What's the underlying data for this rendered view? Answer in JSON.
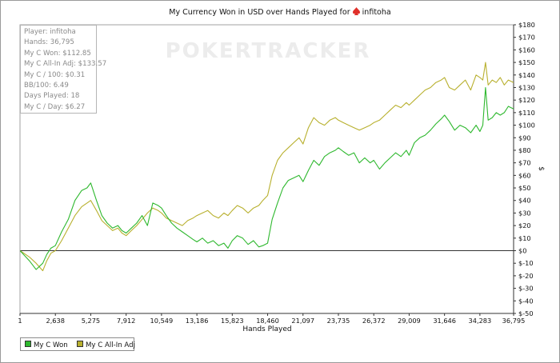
{
  "chart_data": {
    "type": "line",
    "title": "My Currency Won in USD over Hands Played for",
    "player_icon": "red-spade-icon",
    "player_name": "infitoha",
    "xlabel": "Hands Played",
    "ylabel": "$",
    "x_ticks": [
      "1",
      "2,638",
      "5,275",
      "7,912",
      "10,549",
      "13,186",
      "15,823",
      "18,460",
      "21,097",
      "23,735",
      "26,372",
      "29,009",
      "31,646",
      "34,283",
      "36,795"
    ],
    "y_ticks": [
      "$180",
      "$170",
      "$160",
      "$150",
      "$140",
      "$130",
      "$120",
      "$110",
      "$100",
      "$90",
      "$80",
      "$70",
      "$60",
      "$50",
      "$40",
      "$30",
      "$20",
      "$10",
      "$0",
      "$-10",
      "$-20",
      "$-30",
      "$-40",
      "$-50"
    ],
    "xlim": [
      1,
      36795
    ],
    "ylim": [
      -50,
      180
    ],
    "watermark": "POKERTRACKER",
    "stats": [
      "Player: infitoha",
      "Hands: 36,795",
      "My C Won: $112.85",
      "My C All-In Adj: $133.57",
      "My C / 100: $0.31",
      "BB/100: 6.49",
      "Days Played: 18",
      "My C / Day: $6.27"
    ],
    "series": [
      {
        "name": "My C Won",
        "color": "#2eb82e",
        "x": [
          1,
          700,
          1200,
          1700,
          2000,
          2300,
          2638,
          3100,
          3600,
          4100,
          4600,
          5000,
          5275,
          5700,
          6100,
          6500,
          6900,
          7300,
          7600,
          7912,
          8300,
          8700,
          9100,
          9500,
          9900,
          10300,
          10549,
          10900,
          11300,
          11700,
          12100,
          12500,
          12900,
          13186,
          13600,
          14000,
          14400,
          14800,
          15200,
          15500,
          15823,
          16200,
          16600,
          17000,
          17400,
          17800,
          18100,
          18460,
          18800,
          19200,
          19600,
          20000,
          20400,
          20800,
          21097,
          21500,
          21900,
          22300,
          22700,
          23100,
          23500,
          23735,
          24100,
          24500,
          24900,
          25300,
          25700,
          26100,
          26372,
          26800,
          27200,
          27600,
          28000,
          28400,
          28800,
          29009,
          29400,
          29800,
          30200,
          30600,
          31000,
          31400,
          31646,
          32000,
          32400,
          32800,
          33200,
          33600,
          34000,
          34283,
          34500,
          34700,
          34900,
          35200,
          35500,
          35800,
          36100,
          36400,
          36795
        ],
        "values": [
          0,
          -8,
          -15,
          -10,
          -3,
          2,
          4,
          15,
          25,
          40,
          48,
          50,
          54,
          40,
          28,
          22,
          18,
          20,
          16,
          14,
          18,
          22,
          28,
          20,
          38,
          36,
          34,
          28,
          22,
          18,
          15,
          12,
          9,
          7,
          10,
          6,
          8,
          4,
          6,
          2,
          8,
          12,
          10,
          5,
          8,
          3,
          4,
          6,
          25,
          38,
          50,
          56,
          58,
          60,
          55,
          64,
          72,
          68,
          75,
          78,
          80,
          82,
          79,
          76,
          78,
          70,
          74,
          70,
          72,
          65,
          70,
          74,
          78,
          75,
          80,
          76,
          86,
          90,
          92,
          96,
          101,
          105,
          108,
          103,
          96,
          100,
          98,
          94,
          100,
          95,
          100,
          130,
          104,
          106,
          110,
          108,
          110,
          115,
          113
        ]
      },
      {
        "name": "My C All-In Adj",
        "color": "#b8b02e",
        "x": [
          1,
          700,
          1200,
          1700,
          2000,
          2300,
          2638,
          3100,
          3600,
          4100,
          4600,
          5000,
          5275,
          5700,
          6100,
          6500,
          6900,
          7300,
          7600,
          7912,
          8300,
          8700,
          9100,
          9500,
          9900,
          10300,
          10549,
          10900,
          11300,
          11700,
          12100,
          12500,
          12900,
          13186,
          13600,
          14000,
          14400,
          14800,
          15200,
          15500,
          15823,
          16200,
          16600,
          17000,
          17400,
          17800,
          18100,
          18460,
          18800,
          19200,
          19600,
          20000,
          20400,
          20800,
          21097,
          21500,
          21900,
          22300,
          22700,
          23100,
          23500,
          23735,
          24100,
          24500,
          24900,
          25300,
          25700,
          26100,
          26372,
          26800,
          27200,
          27600,
          28000,
          28400,
          28800,
          29009,
          29400,
          29800,
          30200,
          30600,
          31000,
          31400,
          31646,
          32000,
          32400,
          32800,
          33200,
          33600,
          34000,
          34283,
          34500,
          34700,
          34900,
          35200,
          35500,
          35800,
          36100,
          36400,
          36795
        ],
        "values": [
          0,
          -5,
          -10,
          -16,
          -8,
          -2,
          0,
          8,
          18,
          28,
          35,
          38,
          40,
          32,
          24,
          20,
          16,
          18,
          14,
          12,
          16,
          20,
          25,
          30,
          34,
          32,
          30,
          26,
          24,
          22,
          20,
          24,
          26,
          28,
          30,
          32,
          28,
          26,
          30,
          28,
          32,
          36,
          34,
          30,
          34,
          36,
          40,
          44,
          60,
          72,
          78,
          82,
          86,
          90,
          85,
          98,
          106,
          102,
          100,
          104,
          106,
          104,
          102,
          100,
          98,
          96,
          98,
          100,
          102,
          104,
          108,
          112,
          116,
          114,
          118,
          116,
          120,
          124,
          128,
          130,
          134,
          136,
          138,
          130,
          128,
          132,
          136,
          128,
          140,
          138,
          136,
          150,
          132,
          136,
          134,
          138,
          132,
          136,
          134
        ]
      }
    ],
    "legend_position": "bottom-left"
  }
}
